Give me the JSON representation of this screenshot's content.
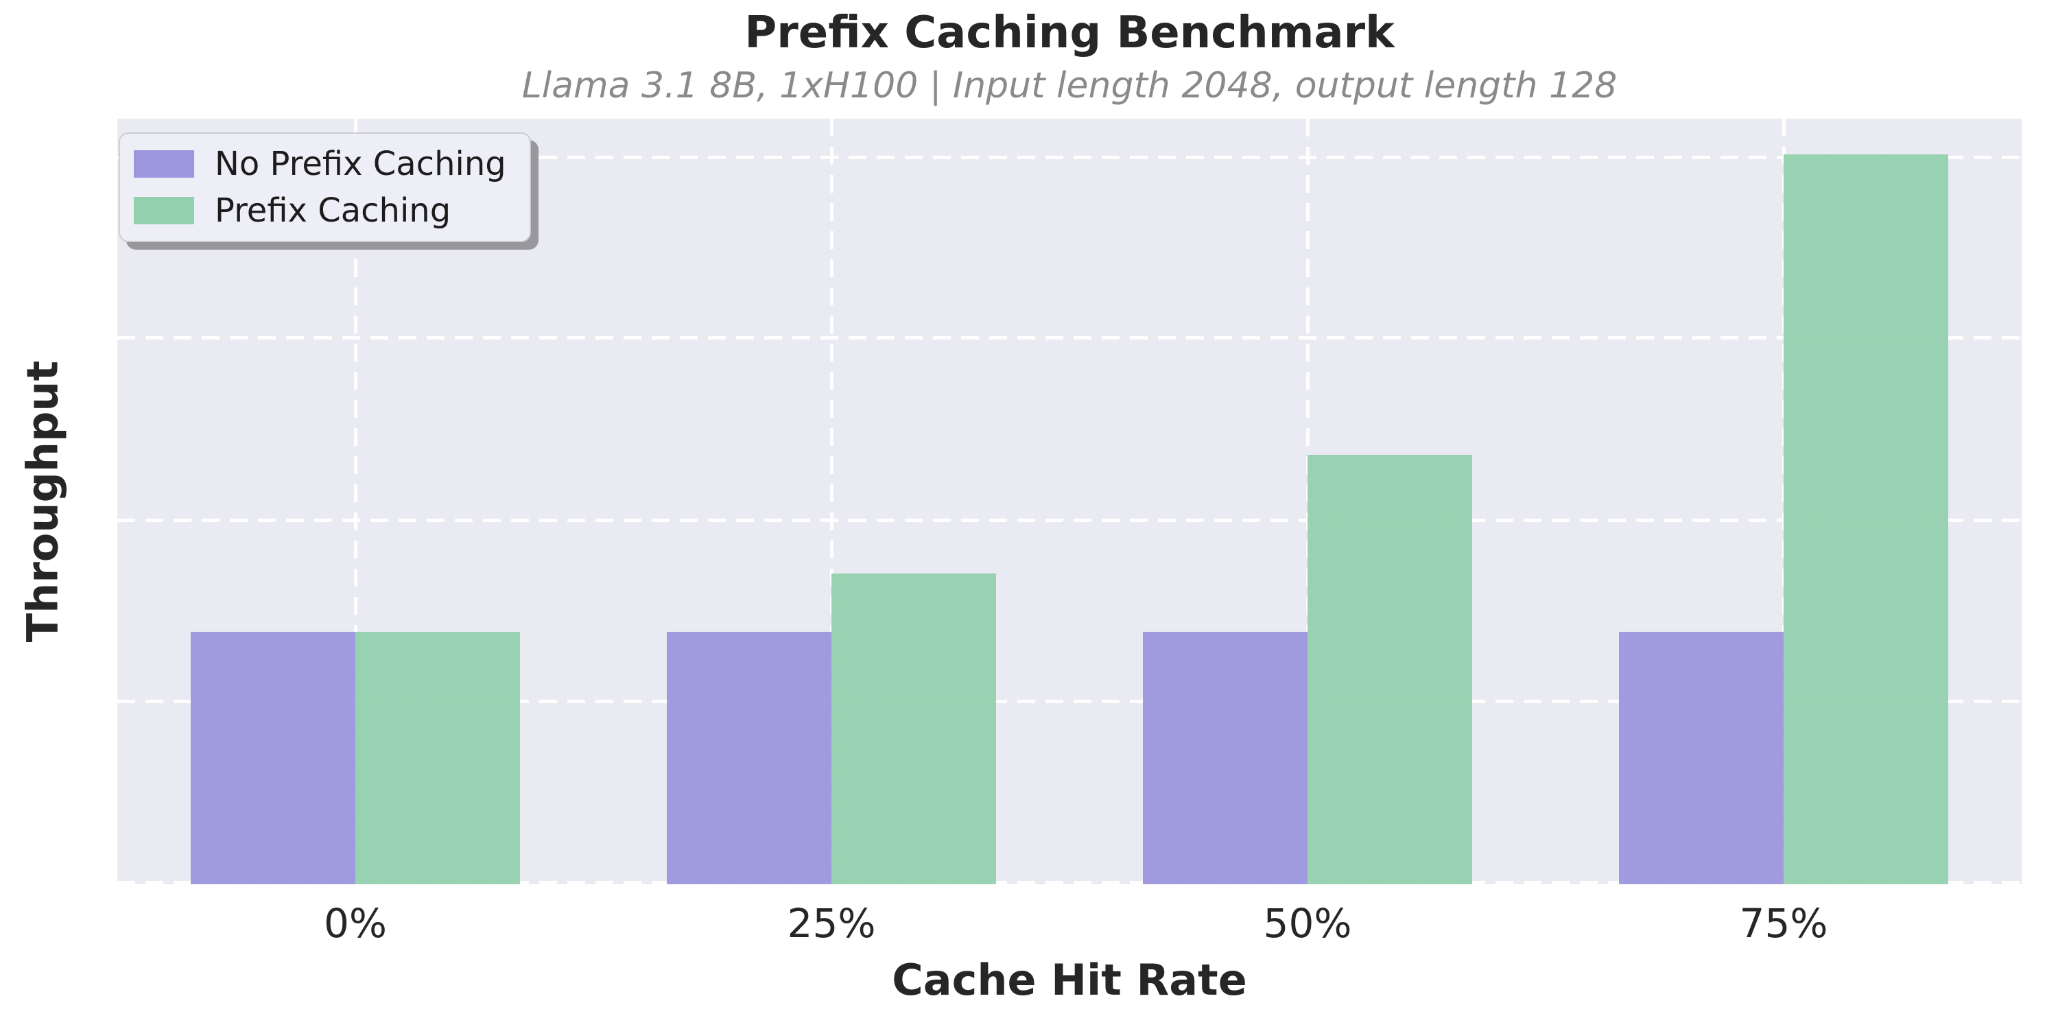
{
  "chart_data": {
    "type": "bar",
    "title": "Prefix Caching Benchmark",
    "subtitle": "Llama 3.1 8B, 1xH100 | Input length 2048, output length 128",
    "xlabel": "Cache Hit Rate",
    "ylabel": "Throughput",
    "categories": [
      "0%",
      "25%",
      "50%",
      "75%"
    ],
    "series": [
      {
        "name": "No Prefix Caching",
        "color": "#9b96dd",
        "values": [
          1.0,
          1.0,
          1.0,
          1.0
        ]
      },
      {
        "name": "Prefix Caching",
        "color": "#93d0ad",
        "values": [
          1.0,
          1.23,
          1.7,
          2.89
        ]
      }
    ],
    "ylim": [
      0,
      3.03
    ],
    "y_tick_labels": [],
    "legend_position": "upper left",
    "grid": "white dashed gridlines, horizontal and vertical, on light lavender background",
    "values_note": "Y axis has no tick labels; series values are normalized to the No Prefix Caching baseline (= 1.0)"
  },
  "colors": {
    "figure_background": "#ffffff",
    "plot_background": "#eaeaf2",
    "grid": "#ffffff",
    "title_text": "#262626",
    "subtitle_text": "#8a8a8a",
    "tick_text": "#262626",
    "legend_background": "#edeef6",
    "legend_border": "#cdcdd4",
    "legend_shadow": "#97979c"
  }
}
